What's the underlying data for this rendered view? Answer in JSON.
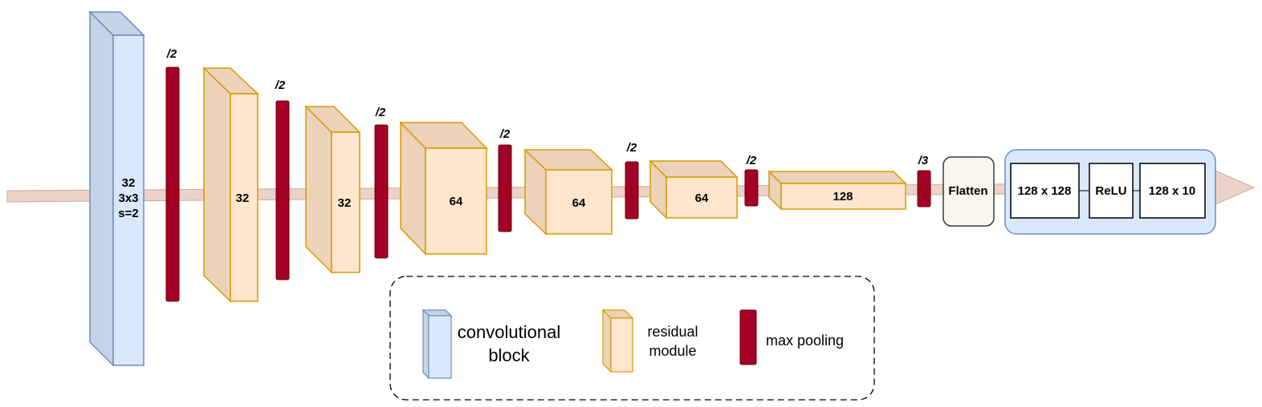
{
  "colors": {
    "conv_front": "#dae8fc",
    "conv_side": "#c6d3e6",
    "conv_stroke": "#6c8ebf",
    "res_front": "#ffe6cc",
    "res_side": "#ebd2b8",
    "res_stroke": "#d79b00",
    "pool_fill": "#a20025",
    "pool_stroke": "#6f0000",
    "arrow_fill": "#ecd2c7",
    "arrow_stroke": "#c8a89a",
    "flatten_fill": "#f9f7ed",
    "head_fill": "#dae8fc",
    "head_stroke": "#6c8ebf"
  },
  "conv_block": {
    "lines": [
      "32",
      "3x3",
      "s=2"
    ]
  },
  "residual_modules": [
    {
      "label": "32"
    },
    {
      "label": "32"
    },
    {
      "label": "64"
    },
    {
      "label": "64"
    },
    {
      "label": "64"
    },
    {
      "label": "128"
    }
  ],
  "pooling_factors": [
    "/2",
    "/2",
    "/2",
    "/2",
    "/2",
    "/2",
    "/3"
  ],
  "flatten_label": "Flatten",
  "head": {
    "layers": [
      "128 x 128",
      "ReLU",
      "128 x 10"
    ]
  },
  "legend": {
    "conv_lines": [
      "convolutional",
      "block"
    ],
    "residual_lines": [
      "residual",
      "module"
    ],
    "pool_label": "max pooling"
  }
}
